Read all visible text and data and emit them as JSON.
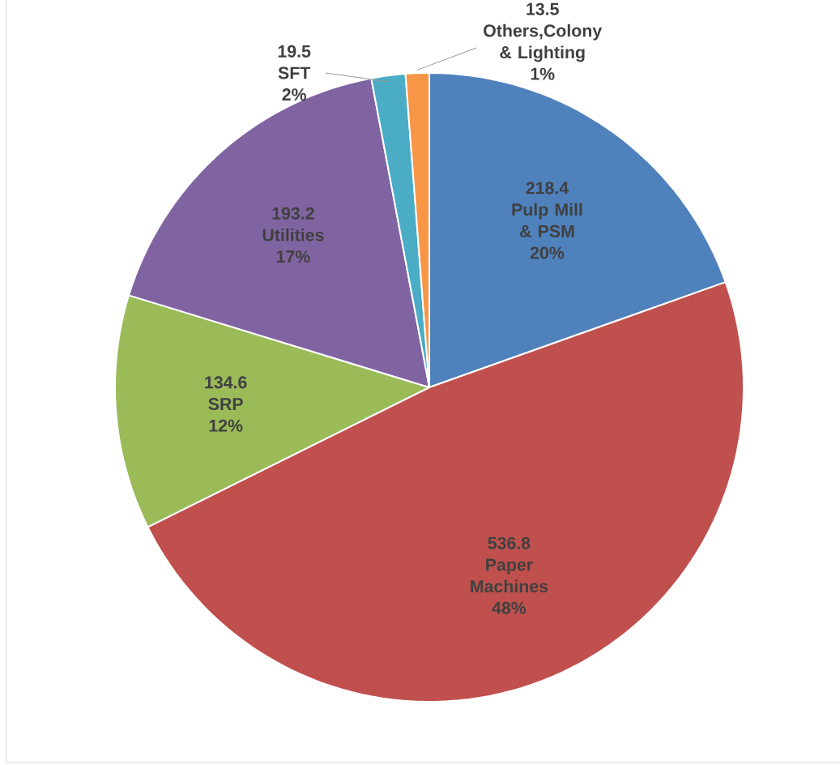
{
  "chart_data": {
    "type": "pie",
    "categories": [
      "Pulp Mill & PSM",
      "Paper Machines",
      "SRP",
      "Utilities",
      "SFT",
      "Others,Colony & Lighting"
    ],
    "values": [
      218.4,
      536.8,
      134.6,
      193.2,
      19.5,
      13.5
    ],
    "colors": [
      "#4f81bd",
      "#c0504d",
      "#9bbb59",
      "#8064a2",
      "#4bacc6",
      "#f79646"
    ],
    "data_labels": true,
    "annotations": [
      "20%",
      "48%",
      "12%",
      "17%",
      "2%",
      "1%"
    ]
  }
}
